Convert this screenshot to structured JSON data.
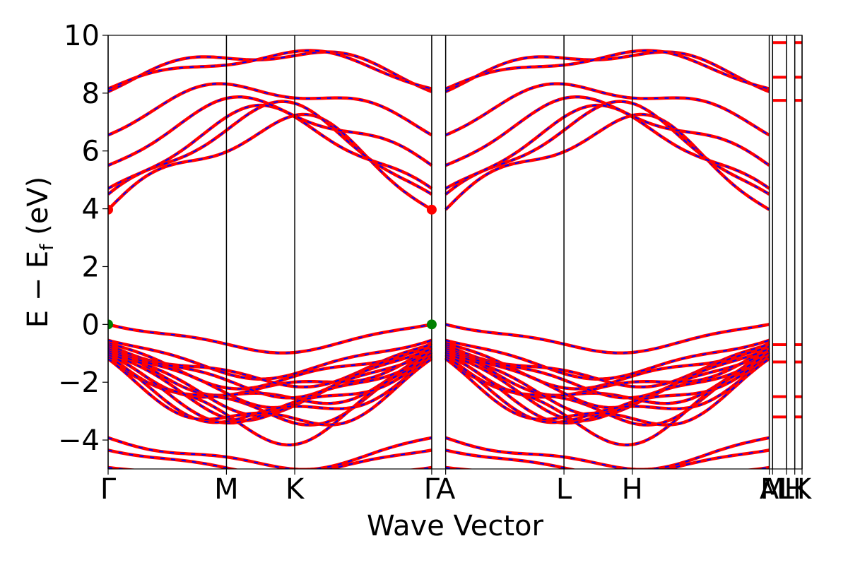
{
  "chart_data": {
    "type": "line",
    "xlabel": "Wave Vector",
    "ylabel_parts": {
      "main": "E − E",
      "sub": "f",
      "unit": " (eV)"
    },
    "ylim": [
      -5,
      10
    ],
    "y_ticks": [
      {
        "value": 10,
        "label": "10"
      },
      {
        "value": 8,
        "label": "8"
      },
      {
        "value": 6,
        "label": "6"
      },
      {
        "value": 4,
        "label": "4"
      },
      {
        "value": 2,
        "label": "2"
      },
      {
        "value": 0,
        "label": "0"
      },
      {
        "value": -2,
        "label": "−2"
      },
      {
        "value": -4,
        "label": "−4"
      }
    ],
    "high_symmetry_points": [
      {
        "label": "Γ",
        "k": 0.0
      },
      {
        "label": "M",
        "k": 0.1705
      },
      {
        "label": "K",
        "k": 0.2689
      },
      {
        "label": "Γ",
        "k": 0.4663
      },
      {
        "label": "A",
        "k": 0.4864
      },
      {
        "label": "L",
        "k": 0.6569
      },
      {
        "label": "H",
        "k": 0.7553
      },
      {
        "label": "A",
        "k": 0.9527
      },
      {
        "label": "M",
        "k": 0.9575
      },
      {
        "label": "L",
        "k": 0.9775
      },
      {
        "label": "H",
        "k": 0.9895
      },
      {
        "label": "K",
        "k": 1.0
      }
    ],
    "series_colors": {
      "spin_up": "#ff0000",
      "spin_down": "#0000ff"
    },
    "band_edges": {
      "cbm": {
        "k": [
          0.0,
          0.4663
        ],
        "energy": 3.97,
        "color": "#ff0000"
      },
      "vbm": {
        "k": [
          0.0,
          0.4663
        ],
        "energy": 0.0,
        "color": "#008000"
      }
    },
    "band_energies_gamma": {
      "conduction": [
        3.97,
        4.5,
        4.7,
        5.5,
        6.55,
        8.05,
        8.15
      ],
      "valence_top": [
        0.0,
        -0.55,
        -0.65,
        -0.8,
        -0.95,
        -1.05,
        -1.15
      ],
      "deep": [
        -3.92,
        -4.35,
        -4.95
      ]
    }
  }
}
